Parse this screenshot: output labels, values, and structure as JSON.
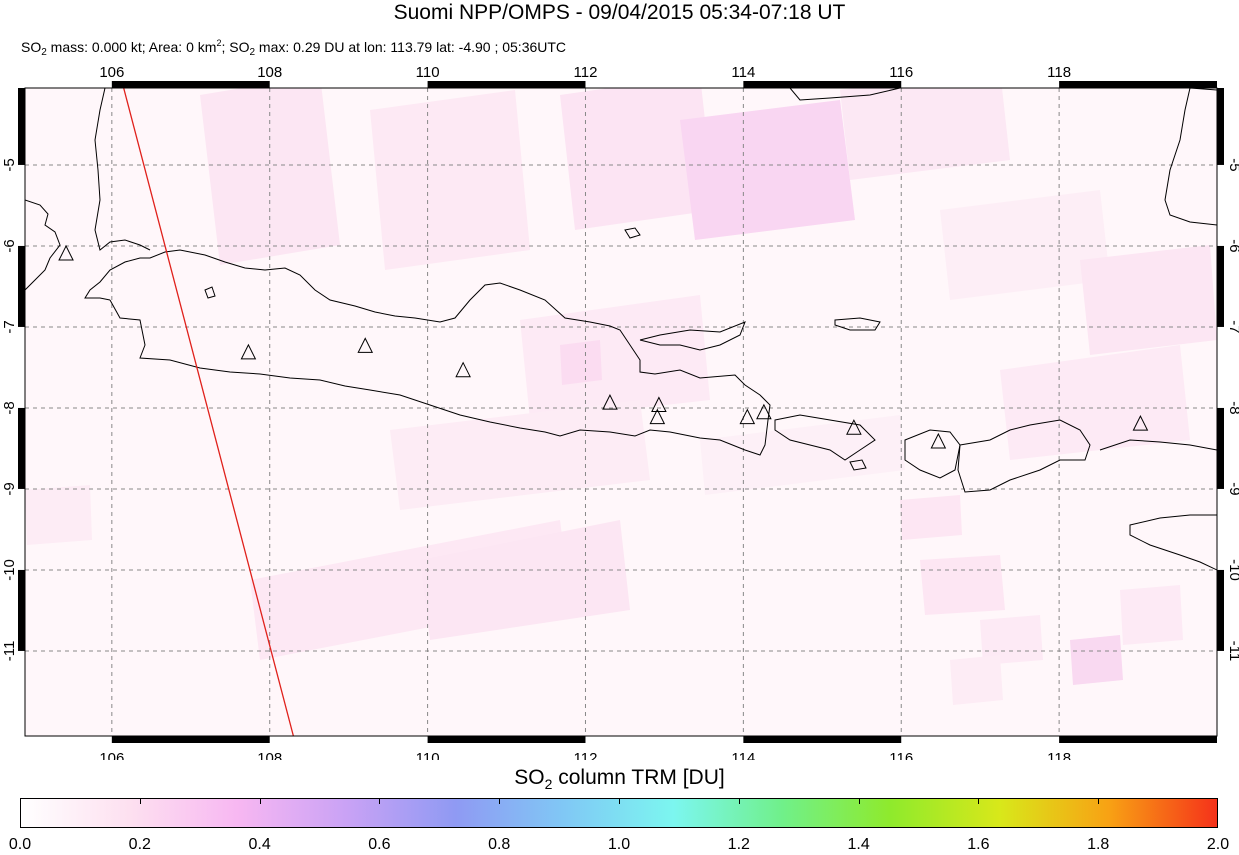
{
  "header": {
    "title": "Suomi NPP/OMPS - 09/04/2015 05:34-07:18 UT",
    "stats": {
      "mass_prefix": "SO",
      "mass_sub": "2",
      "mass_text": " mass: 0.000 kt; Area: 0 km",
      "area_sup": "2",
      "max_prefix": "; SO",
      "max_sub": "2",
      "max_text": " max: 0.29 DU at lon: 113.79 lat: -4.90 ; 05:36UTC"
    }
  },
  "map": {
    "lon_ticks": [
      "106",
      "108",
      "110",
      "112",
      "114",
      "116",
      "118"
    ],
    "lat_ticks": [
      "-5",
      "-6",
      "-7",
      "-8",
      "-9",
      "-10",
      "-11"
    ],
    "lon_range": [
      104.9,
      120.0
    ],
    "lat_range": [
      -12.05,
      -4.05
    ],
    "volcano_icon": "triangle-volcano-icon",
    "volcanoes": [
      {
        "lon": 105.42,
        "lat": -6.1
      },
      {
        "lon": 107.73,
        "lat": -7.32
      },
      {
        "lon": 109.21,
        "lat": -7.24
      },
      {
        "lon": 110.45,
        "lat": -7.54
      },
      {
        "lon": 112.31,
        "lat": -7.94
      },
      {
        "lon": 112.93,
        "lat": -7.97
      },
      {
        "lon": 112.91,
        "lat": -8.12
      },
      {
        "lon": 114.05,
        "lat": -8.12
      },
      {
        "lon": 114.26,
        "lat": -8.06
      },
      {
        "lon": 115.4,
        "lat": -8.25
      },
      {
        "lon": 116.47,
        "lat": -8.42
      },
      {
        "lon": 119.03,
        "lat": -8.2
      }
    ],
    "coastline_color": "#000000",
    "orbit_line_color": "#e0201b",
    "orbit_line": [
      [
        106.15,
        -4.05
      ],
      [
        108.3,
        -12.05
      ]
    ]
  },
  "colorbar": {
    "title_prefix": "SO",
    "title_sub": "2",
    "title_text": " column TRM [DU]",
    "tick_labels": [
      "0.0",
      "0.2",
      "0.4",
      "0.6",
      "0.8",
      "1.0",
      "1.2",
      "1.4",
      "1.6",
      "1.8",
      "2.0"
    ],
    "gradient": [
      "#ffffff",
      "#fde0f0",
      "#f7b7f2",
      "#c9a2f5",
      "#8f9af3",
      "#80c8f5",
      "#7cf6f0",
      "#70f08a",
      "#8fea2c",
      "#d8e81a",
      "#f8a214",
      "#f5321a"
    ]
  }
}
